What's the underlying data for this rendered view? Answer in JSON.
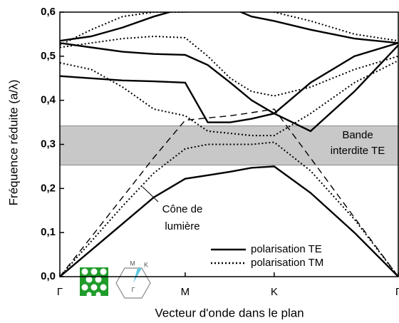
{
  "chart_data": {
    "type": "line",
    "y_label": "Fréquence réduite (a/λ)",
    "x_label": "Vecteur d'onde dans le plan",
    "xlim": [
      0,
      2.7
    ],
    "ylim": [
      0,
      0.6
    ],
    "xticks": [
      {
        "value": 0,
        "label": "Γ"
      },
      {
        "value": 1,
        "label": "M"
      },
      {
        "value": 1.71,
        "label": "K"
      },
      {
        "value": 2.7,
        "label": "Γ"
      }
    ],
    "yticks": [
      {
        "value": 0,
        "label": "0,0"
      },
      {
        "value": 0.1,
        "label": "0,1"
      },
      {
        "value": 0.2,
        "label": "0,2"
      },
      {
        "value": 0.3,
        "label": "0,3"
      },
      {
        "value": 0.4,
        "label": "0,4"
      },
      {
        "value": 0.5,
        "label": "0,5"
      },
      {
        "value": 0.6,
        "label": "0,6"
      }
    ],
    "x": [
      0,
      0.25,
      0.5,
      0.75,
      1,
      1.18,
      1.36,
      1.53,
      1.71,
      2.0,
      2.35,
      2.7
    ],
    "series": [
      {
        "name": "polarisation TE",
        "style": "solid",
        "color": "#000000",
        "bands": [
          [
            0,
            0.06,
            0.12,
            0.18,
            0.222,
            0.23,
            0.238,
            0.247,
            0.25,
            0.19,
            0.1,
            0
          ],
          [
            0.455,
            0.45,
            0.445,
            0.443,
            0.44,
            0.35,
            0.35,
            0.358,
            0.37,
            0.33,
            0.42,
            0.525
          ],
          [
            0.53,
            0.52,
            0.51,
            0.505,
            0.503,
            0.48,
            0.44,
            0.4,
            0.37,
            0.44,
            0.5,
            0.53
          ],
          [
            0.535,
            0.545,
            0.565,
            0.59,
            0.61,
            0.62,
            0.61,
            0.59,
            0.58,
            0.56,
            0.54,
            0.53
          ]
        ]
      },
      {
        "name": "polarisation TM",
        "style": "dotted",
        "color": "#000000",
        "bands": [
          [
            0,
            0.08,
            0.16,
            0.235,
            0.29,
            0.3,
            0.3,
            0.3,
            0.305,
            0.24,
            0.13,
            0
          ],
          [
            0.485,
            0.47,
            0.43,
            0.38,
            0.365,
            0.33,
            0.325,
            0.32,
            0.32,
            0.37,
            0.44,
            0.49
          ],
          [
            0.52,
            0.53,
            0.54,
            0.545,
            0.542,
            0.5,
            0.45,
            0.42,
            0.41,
            0.43,
            0.47,
            0.5
          ],
          [
            0.525,
            0.56,
            0.59,
            0.6,
            0.6,
            0.61,
            0.61,
            0.605,
            0.6,
            0.58,
            0.55,
            0.535
          ]
        ]
      }
    ],
    "light_cone": {
      "style": "dashed",
      "color": "#000000",
      "values": [
        0,
        0.09,
        0.18,
        0.27,
        0.355,
        0.36,
        0.365,
        0.372,
        0.38,
        0.269,
        0.134,
        0
      ],
      "label": [
        "Cône de",
        "lumière"
      ]
    },
    "band_gap": {
      "range": [
        0.253,
        0.342
      ],
      "color": "#c8c8c8",
      "label": [
        "Bande",
        "interdite TE"
      ]
    },
    "inset_labels": [
      "M",
      "K",
      "Γ"
    ]
  }
}
